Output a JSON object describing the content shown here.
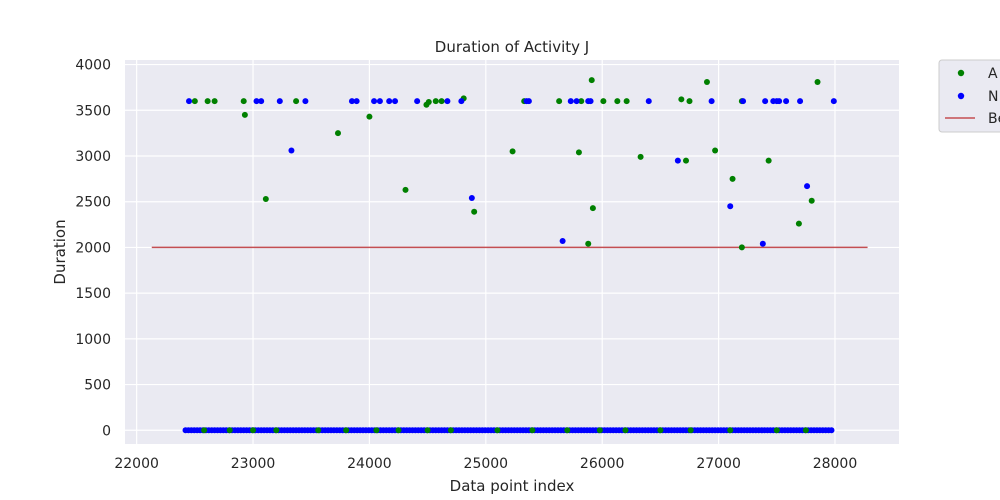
{
  "chart_data": {
    "type": "scatter",
    "title": "Duration of Activity J",
    "xlabel": "Data point index",
    "ylabel": "Duration",
    "xlim": [
      21900,
      28550
    ],
    "ylim": [
      -150,
      4050
    ],
    "xticks": [
      22000,
      23000,
      24000,
      25000,
      26000,
      27000,
      28000
    ],
    "yticks": [
      0,
      500,
      1000,
      1500,
      2000,
      2500,
      3000,
      3500,
      4000
    ],
    "grid": true,
    "legend_position": "outside-top-right",
    "colors": {
      "background": "#eaeaf2",
      "grid": "#ffffff",
      "green": "#008000",
      "blue": "#0000ff",
      "line": "#c44e52"
    },
    "series": [
      {
        "name": "A",
        "kind": "points",
        "color": "#008000",
        "points": [
          [
            22500,
            3600
          ],
          [
            22610,
            3600
          ],
          [
            22670,
            3600
          ],
          [
            22920,
            3600
          ],
          [
            22930,
            3450
          ],
          [
            23110,
            2530
          ],
          [
            23370,
            3600
          ],
          [
            23730,
            3250
          ],
          [
            24000,
            3430
          ],
          [
            24310,
            2630
          ],
          [
            24490,
            3560
          ],
          [
            24510,
            3590
          ],
          [
            24570,
            3600
          ],
          [
            24620,
            3600
          ],
          [
            24810,
            3630
          ],
          [
            24900,
            2390
          ],
          [
            25230,
            3050
          ],
          [
            25330,
            3600
          ],
          [
            25630,
            3600
          ],
          [
            25800,
            3040
          ],
          [
            25820,
            3600
          ],
          [
            25880,
            2040
          ],
          [
            25910,
            3830
          ],
          [
            25920,
            2430
          ],
          [
            26010,
            3600
          ],
          [
            26130,
            3600
          ],
          [
            26210,
            3600
          ],
          [
            26330,
            2990
          ],
          [
            26680,
            3620
          ],
          [
            26720,
            2950
          ],
          [
            26750,
            3600
          ],
          [
            26900,
            3810
          ],
          [
            26970,
            3060
          ],
          [
            27120,
            2750
          ],
          [
            27200,
            2000
          ],
          [
            27200,
            3600
          ],
          [
            27430,
            2950
          ],
          [
            27690,
            2260
          ],
          [
            27800,
            2510
          ],
          [
            27850,
            3810
          ],
          [
            22580,
            0
          ],
          [
            22800,
            0
          ],
          [
            23000,
            0
          ],
          [
            23200,
            0
          ],
          [
            23560,
            0
          ],
          [
            23800,
            0
          ],
          [
            24060,
            0
          ],
          [
            24250,
            0
          ],
          [
            24500,
            0
          ],
          [
            24700,
            0
          ],
          [
            25100,
            0
          ],
          [
            25400,
            0
          ],
          [
            25700,
            0
          ],
          [
            25980,
            0
          ],
          [
            26200,
            0
          ],
          [
            26500,
            0
          ],
          [
            26760,
            0
          ],
          [
            27100,
            0
          ],
          [
            27500,
            0
          ],
          [
            27750,
            0
          ]
        ]
      },
      {
        "name": "N",
        "kind": "points",
        "color": "#0000ff",
        "points": [
          [
            22450,
            3600
          ],
          [
            23030,
            3600
          ],
          [
            23070,
            3600
          ],
          [
            23230,
            3600
          ],
          [
            23330,
            3060
          ],
          [
            23450,
            3600
          ],
          [
            23850,
            3600
          ],
          [
            23890,
            3600
          ],
          [
            24040,
            3600
          ],
          [
            24090,
            3600
          ],
          [
            24170,
            3600
          ],
          [
            24220,
            3600
          ],
          [
            24410,
            3600
          ],
          [
            24670,
            3600
          ],
          [
            24790,
            3600
          ],
          [
            24880,
            2540
          ],
          [
            25350,
            3600
          ],
          [
            25370,
            3600
          ],
          [
            25660,
            2070
          ],
          [
            25730,
            3600
          ],
          [
            25780,
            3600
          ],
          [
            25880,
            3600
          ],
          [
            25900,
            3600
          ],
          [
            26400,
            3600
          ],
          [
            26650,
            2950
          ],
          [
            26940,
            3600
          ],
          [
            27100,
            2450
          ],
          [
            27210,
            3600
          ],
          [
            27380,
            2040
          ],
          [
            27400,
            3600
          ],
          [
            27470,
            3600
          ],
          [
            27500,
            3600
          ],
          [
            27520,
            3600
          ],
          [
            27580,
            3600
          ],
          [
            27700,
            3600
          ],
          [
            27760,
            2670
          ],
          [
            27990,
            3600
          ]
        ]
      },
      {
        "name": "Be",
        "kind": "line",
        "color": "#c44e52",
        "points": [
          [
            22130,
            2000
          ],
          [
            28280,
            2000
          ]
        ]
      }
    ],
    "zero_band": {
      "color": "#0000ff",
      "value": 0,
      "x_start": 22420,
      "x_end": 27990,
      "approx_spacing": 25
    }
  }
}
